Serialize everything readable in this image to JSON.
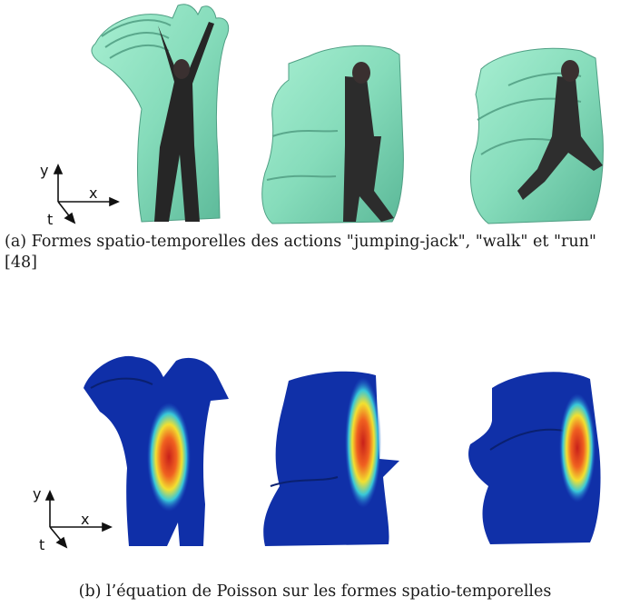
{
  "figure": {
    "panel_a": {
      "caption": "(a) Formes spatio-temporelles des actions \"jumping-jack\", \"walk\" et \"run\" [48]",
      "axes": {
        "y": "y",
        "x": "x",
        "t": "t"
      }
    },
    "panel_b": {
      "caption": "(b) l’équation de Poisson sur les formes spatio-temporelles",
      "axes": {
        "y": "y",
        "x": "x",
        "t": "t"
      }
    }
  },
  "colors": {
    "shape_green": "#8fe0c0",
    "shape_blue": "#0f2fa8",
    "heat_hot": "#d9281a",
    "heat_warm": "#f2e030",
    "heat_cyan": "#38c8d8"
  }
}
